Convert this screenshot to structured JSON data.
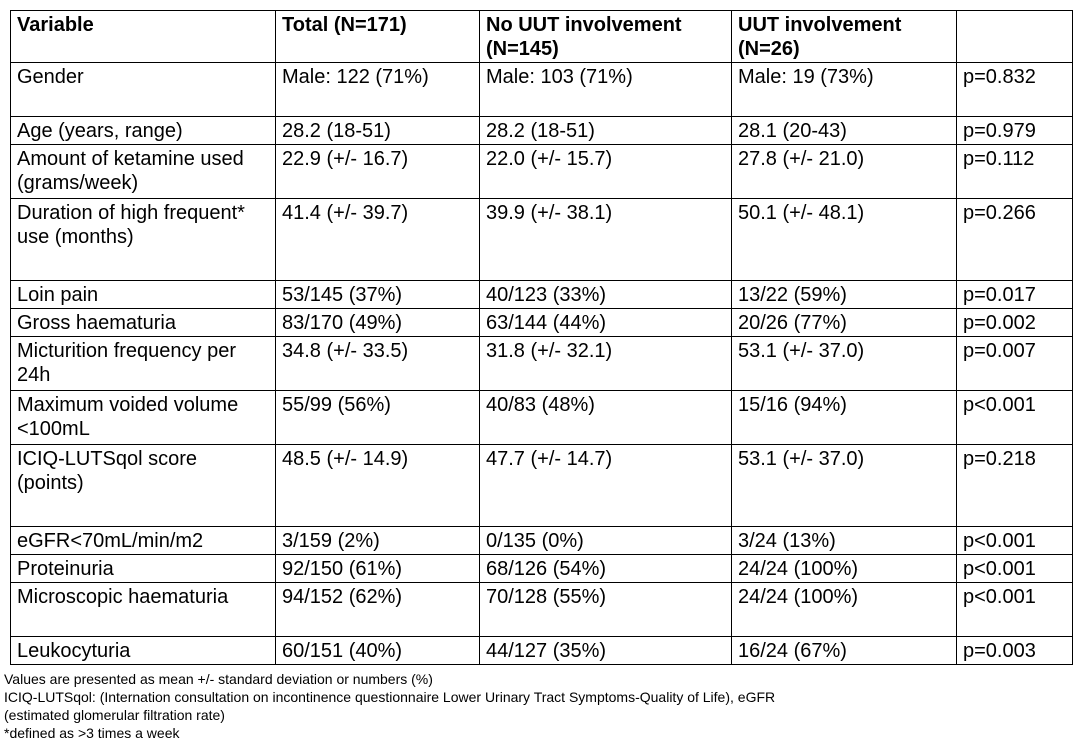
{
  "table": {
    "headers": [
      "Variable",
      "Total (N=171)",
      "No UUT involvement (N=145)",
      "UUT involvement (N=26)",
      ""
    ],
    "rows": [
      {
        "variable": "Gender",
        "total": "Male: 122 (71%)",
        "no_uut": "Male: 103 (71%)",
        "uut": "Male: 19 (73%)",
        "p": "p=0.832",
        "significant": false
      },
      {
        "variable": "Age (years, range)",
        "total": "28.2 (18-51)",
        "no_uut": "28.2 (18-51)",
        "uut": "28.1 (20-43)",
        "p": "p=0.979",
        "significant": false
      },
      {
        "variable": "Amount of ketamine used (grams/week)",
        "total": "22.9 (+/- 16.7)",
        "no_uut": "22.0 (+/- 15.7)",
        "uut": "27.8 (+/- 21.0)",
        "p": "p=0.112",
        "significant": false
      },
      {
        "variable": "Duration of high frequent* use (months)",
        "total": "41.4 (+/- 39.7)",
        "no_uut": "39.9 (+/- 38.1)",
        "uut": "50.1 (+/- 48.1)",
        "p": "p=0.266",
        "significant": false
      },
      {
        "variable": "Loin pain",
        "total": "53/145 (37%)",
        "no_uut": "40/123 (33%)",
        "uut": "13/22 (59%)",
        "p": "p=0.017",
        "significant": true
      },
      {
        "variable": "Gross haematuria",
        "total": "83/170 (49%)",
        "no_uut": "63/144 (44%)",
        "uut": "20/26 (77%)",
        "p": "p=0.002",
        "significant": true
      },
      {
        "variable": "Micturition frequency per 24h",
        "total": "34.8 (+/- 33.5)",
        "no_uut": "31.8 (+/- 32.1)",
        "uut": "53.1 (+/- 37.0)",
        "p": "p=0.007",
        "significant": true
      },
      {
        "variable": "Maximum voided volume <100mL",
        "total": "55/99 (56%)",
        "no_uut": "40/83 (48%)",
        "uut": "15/16 (94%)",
        "p": "p<0.001",
        "significant": true
      },
      {
        "variable": "ICIQ-LUTSqol score (points)",
        "total": "48.5 (+/- 14.9)",
        "no_uut": "47.7 (+/- 14.7)",
        "uut": "53.1 (+/- 37.0)",
        "p": "p=0.218",
        "significant": false
      },
      {
        "variable": "eGFR<70mL/min/m2",
        "total": "3/159 (2%)",
        "no_uut": "0/135 (0%)",
        "uut": "3/24 (13%)",
        "p": "p<0.001",
        "significant": true
      },
      {
        "variable": "Proteinuria",
        "total": "92/150 (61%)",
        "no_uut": "68/126 (54%)",
        "uut": "24/24 (100%)",
        "p": "p<0.001",
        "significant": true
      },
      {
        "variable": "Microscopic haematuria",
        "total": "94/152 (62%)",
        "no_uut": "70/128 (55%)",
        "uut": "24/24 (100%)",
        "p": "p<0.001",
        "significant": true
      },
      {
        "variable": "Leukocyturia",
        "total": "60/151 (40%)",
        "no_uut": "44/127 (35%)",
        "uut": "16/24 (67%)",
        "p": "p=0.003",
        "significant": true
      }
    ]
  },
  "notes": [
    "Values are presented as mean +/- standard deviation or numbers (%)",
    "ICIQ-LUTSqol: (Internation consultation on incontinence questionnaire Lower Urinary Tract Symptoms-Quality of Life), eGFR",
    "(estimated glomerular filtration rate)",
    "*defined as >3 times a week"
  ]
}
